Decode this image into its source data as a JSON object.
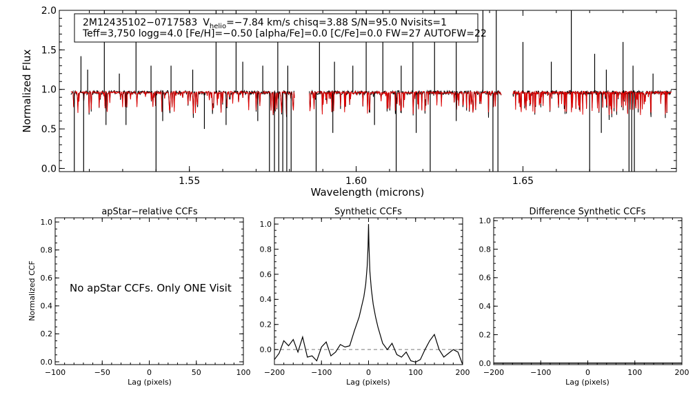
{
  "chart_data": [
    {
      "type": "line",
      "panel": "spectrum",
      "xlabel": "Wavelength (microns)",
      "ylabel": "Normalized Flux",
      "xlim": [
        1.511,
        1.696
      ],
      "ylim": [
        -0.04,
        2.0
      ],
      "xticks": [
        1.55,
        1.6,
        1.65
      ],
      "xtick_labels": [
        "1.55",
        "1.60",
        "1.65"
      ],
      "yticks": [
        0.0,
        0.5,
        1.0,
        1.5,
        2.0
      ],
      "ytick_labels": [
        "0.0",
        "0.5",
        "1.0",
        "1.5",
        "2.0"
      ],
      "annotation_line1": {
        "star": "2M12435102−0717583",
        "v_prefix": "V",
        "v_sub": "helio",
        "v_rest": "=−7.84 km/s  chisq=3.88  S/N=95.0  Nvisits=1"
      },
      "annotation_line2": "Teff=3,750 logg=4.0 [Fe/H]=−0.50 [alpha/Fe]=0.0 [C/Fe]=0.0 FW=27 AUTOFW=22",
      "chips": [
        [
          1.5145,
          1.5815
        ],
        [
          1.586,
          1.6435
        ],
        [
          1.647,
          1.6945
        ]
      ],
      "continuum": 0.96,
      "series": [
        {
          "role": "observed",
          "color": "#000000"
        },
        {
          "role": "model",
          "color": "#dd0000"
        }
      ],
      "emission_spikes": [
        [
          1.5175,
          1.42
        ],
        [
          1.5195,
          1.25
        ],
        [
          1.5245,
          2.0
        ],
        [
          1.529,
          1.2
        ],
        [
          1.534,
          2.0
        ],
        [
          1.5385,
          1.3
        ],
        [
          1.5445,
          1.3
        ],
        [
          1.551,
          1.25
        ],
        [
          1.558,
          2.0
        ],
        [
          1.564,
          2.0
        ],
        [
          1.566,
          1.35
        ],
        [
          1.572,
          1.3
        ],
        [
          1.5765,
          1.6
        ],
        [
          1.5795,
          1.3
        ],
        [
          1.589,
          1.8
        ],
        [
          1.5935,
          1.35
        ],
        [
          1.599,
          1.3
        ],
        [
          1.603,
          2.0
        ],
        [
          1.608,
          2.0
        ],
        [
          1.6135,
          1.3
        ],
        [
          1.617,
          1.6
        ],
        [
          1.6235,
          2.0
        ],
        [
          1.63,
          2.0
        ],
        [
          1.638,
          2.0
        ],
        [
          1.642,
          2.0
        ],
        [
          1.65,
          1.6
        ],
        [
          1.6585,
          1.35
        ],
        [
          1.6645,
          2.0
        ],
        [
          1.6715,
          1.45
        ],
        [
          1.675,
          1.25
        ],
        [
          1.68,
          1.6
        ],
        [
          1.683,
          1.3
        ],
        [
          1.689,
          1.2
        ]
      ],
      "absorption_spikes": [
        [
          1.5155,
          -0.04
        ],
        [
          1.5183,
          -0.04
        ],
        [
          1.525,
          0.55
        ],
        [
          1.531,
          0.55
        ],
        [
          1.54,
          -0.04
        ],
        [
          1.542,
          0.6
        ],
        [
          1.5545,
          0.5
        ],
        [
          1.561,
          0.55
        ],
        [
          1.5705,
          0.6
        ],
        [
          1.574,
          -0.04
        ],
        [
          1.5755,
          -0.04
        ],
        [
          1.5768,
          -0.04
        ],
        [
          1.578,
          -0.04
        ],
        [
          1.5792,
          -0.04
        ],
        [
          1.5805,
          -0.04
        ],
        [
          1.588,
          -0.04
        ],
        [
          1.593,
          0.45
        ],
        [
          1.6055,
          0.55
        ],
        [
          1.612,
          -0.04
        ],
        [
          1.618,
          0.45
        ],
        [
          1.6222,
          -0.04
        ],
        [
          1.63,
          0.6
        ],
        [
          1.641,
          -0.04
        ],
        [
          1.6425,
          -0.04
        ],
        [
          1.67,
          -0.04
        ],
        [
          1.6735,
          0.45
        ],
        [
          1.6818,
          -0.04
        ],
        [
          1.6826,
          -0.04
        ],
        [
          1.6834,
          -0.04
        ]
      ]
    },
    {
      "type": "line",
      "panel": "apstar-ccf",
      "title": "apStar−relative CCFs",
      "xlabel": "Lag (pixels)",
      "ylabel": "Normalized CCF",
      "xlim": [
        -100,
        100
      ],
      "ylim": [
        -0.02,
        1.03
      ],
      "xticks": [
        -100,
        -50,
        0,
        50,
        100
      ],
      "xtick_labels": [
        "−100",
        "−50",
        "0",
        "50",
        "100"
      ],
      "yticks": [
        0.0,
        0.2,
        0.4,
        0.6,
        0.8,
        1.0
      ],
      "ytick_labels": [
        "0.0",
        "0.2",
        "0.4",
        "0.6",
        "0.8",
        "1.0"
      ],
      "message": "No apStar CCFs.  Only ONE Visit"
    },
    {
      "type": "line",
      "panel": "synthetic-ccf",
      "title": "Synthetic CCFs",
      "xlabel": "Lag (pixels)",
      "xlim": [
        -200,
        200
      ],
      "ylim": [
        -0.12,
        1.05
      ],
      "xticks": [
        -200,
        -100,
        0,
        100,
        200
      ],
      "xtick_labels": [
        "−200",
        "−100",
        "0",
        "100",
        "200"
      ],
      "yticks": [
        0.0,
        0.2,
        0.4,
        0.6,
        0.8,
        1.0
      ],
      "ytick_labels": [
        "0.0",
        "0.2",
        "0.4",
        "0.6",
        "0.8",
        "1.0"
      ],
      "zero_line": 0.0,
      "x": [
        -200,
        -190,
        -180,
        -170,
        -160,
        -150,
        -140,
        -130,
        -120,
        -110,
        -100,
        -90,
        -80,
        -70,
        -60,
        -50,
        -40,
        -30,
        -20,
        -15,
        -10,
        -6,
        -3,
        -1,
        0,
        1,
        3,
        6,
        10,
        15,
        20,
        30,
        40,
        50,
        60,
        70,
        80,
        90,
        100,
        110,
        120,
        130,
        140,
        150,
        160,
        170,
        180,
        190,
        200
      ],
      "values": [
        -0.08,
        -0.03,
        0.07,
        0.03,
        0.08,
        -0.02,
        0.1,
        -0.06,
        -0.05,
        -0.09,
        0.02,
        0.06,
        -0.05,
        -0.02,
        0.04,
        0.02,
        0.03,
        0.15,
        0.26,
        0.34,
        0.42,
        0.52,
        0.66,
        0.82,
        1.0,
        0.82,
        0.62,
        0.48,
        0.36,
        0.26,
        0.18,
        0.05,
        0.0,
        0.05,
        -0.04,
        -0.06,
        -0.02,
        -0.09,
        -0.1,
        -0.08,
        0.0,
        0.07,
        0.12,
        0.0,
        -0.06,
        -0.03,
        0.0,
        -0.02,
        -0.12
      ]
    },
    {
      "type": "line",
      "panel": "difference-ccf",
      "title": "Difference Synthetic CCFs",
      "xlabel": "Lag (pixels)",
      "xlim": [
        -200,
        200
      ],
      "ylim": [
        -0.01,
        1.02
      ],
      "xticks": [
        -200,
        -100,
        0,
        100,
        200
      ],
      "xtick_labels": [
        "−200",
        "−100",
        "0",
        "100",
        "200"
      ],
      "yticks": [
        0.0,
        0.2,
        0.4,
        0.6,
        0.8,
        1.0
      ],
      "ytick_labels": [
        "0.0",
        "0.2",
        "0.4",
        "0.6",
        "0.8",
        "1.0"
      ],
      "x": [
        -200,
        200
      ],
      "values": [
        0.0,
        0.0
      ]
    }
  ]
}
